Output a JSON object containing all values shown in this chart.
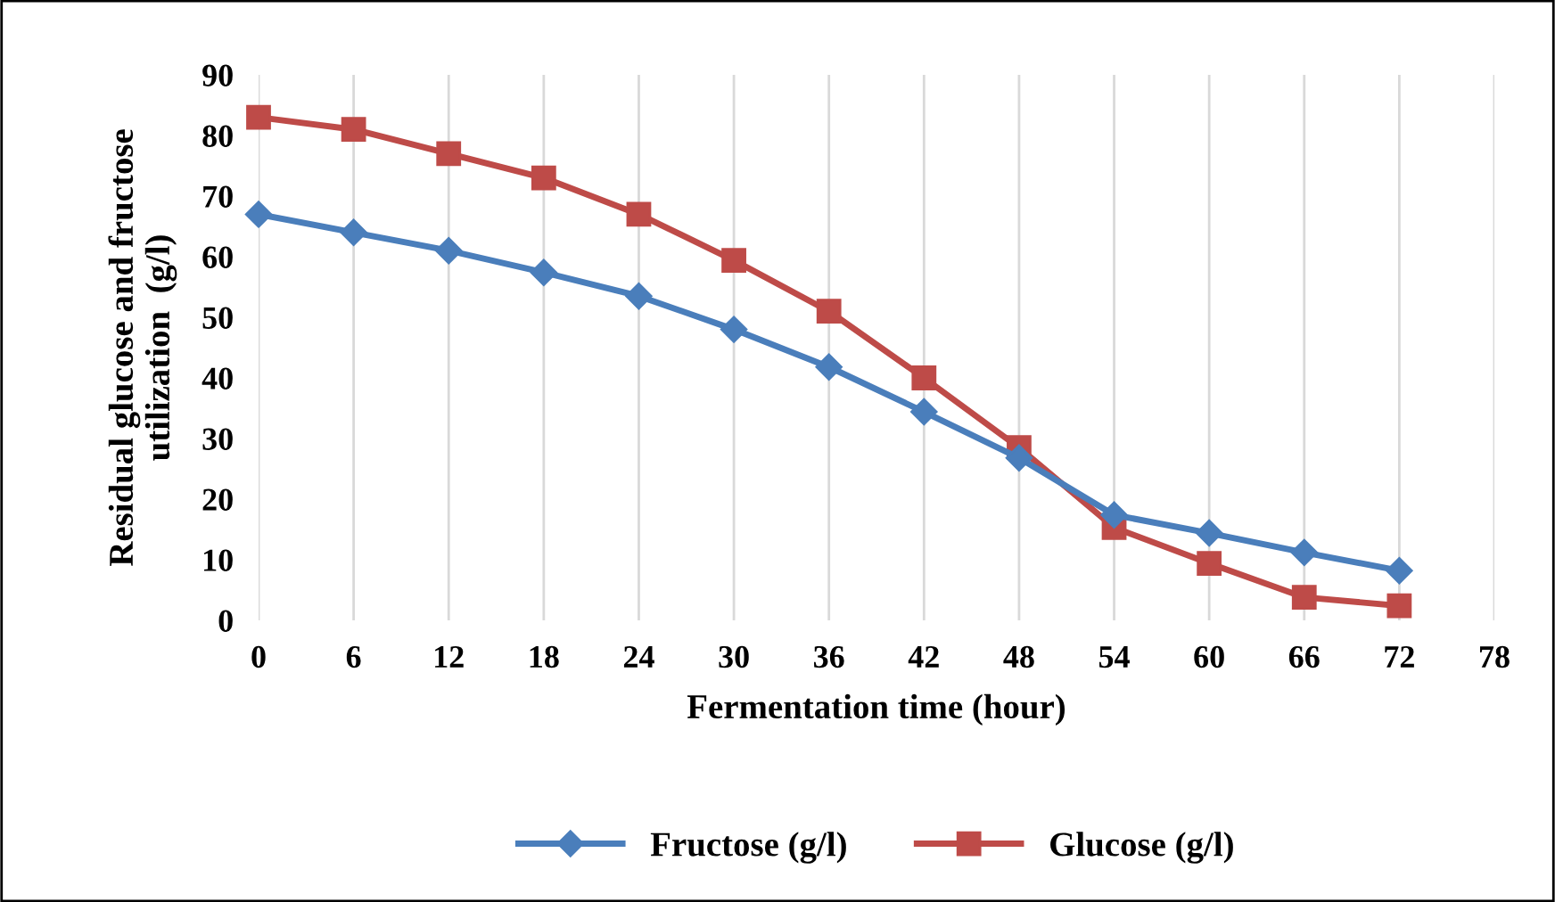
{
  "chart_data": {
    "type": "line",
    "xlabel": "Fermentation time (hour)",
    "ylabel": "Residual glucose and fructose\nutilization  (g/l)",
    "x": [
      0,
      6,
      12,
      18,
      24,
      30,
      36,
      42,
      48,
      54,
      60,
      66,
      72
    ],
    "xlim": [
      0,
      78
    ],
    "xticks": [
      0,
      6,
      12,
      18,
      24,
      30,
      36,
      42,
      48,
      54,
      60,
      66,
      72,
      78
    ],
    "ylim": [
      0,
      90
    ],
    "yticks": [
      0,
      10,
      20,
      30,
      40,
      50,
      60,
      70,
      80,
      90
    ],
    "grid": "x",
    "legend": "bottom",
    "line_style": "solid",
    "series": [
      {
        "name": "Fructose (g/l)",
        "color": "#4a7ebb",
        "marker": "diamond",
        "values": [
          67,
          64,
          61,
          57.4,
          53.5,
          48,
          41.8,
          34.4,
          26.8,
          17.4,
          14.4,
          11.2,
          8.2
        ]
      },
      {
        "name": "Glucose (g/l)",
        "color": "#be4b48",
        "marker": "square",
        "values": [
          83,
          81,
          77,
          73,
          67,
          59.4,
          51,
          40,
          28.5,
          15.3,
          9.4,
          3.8,
          2.4
        ]
      }
    ]
  }
}
